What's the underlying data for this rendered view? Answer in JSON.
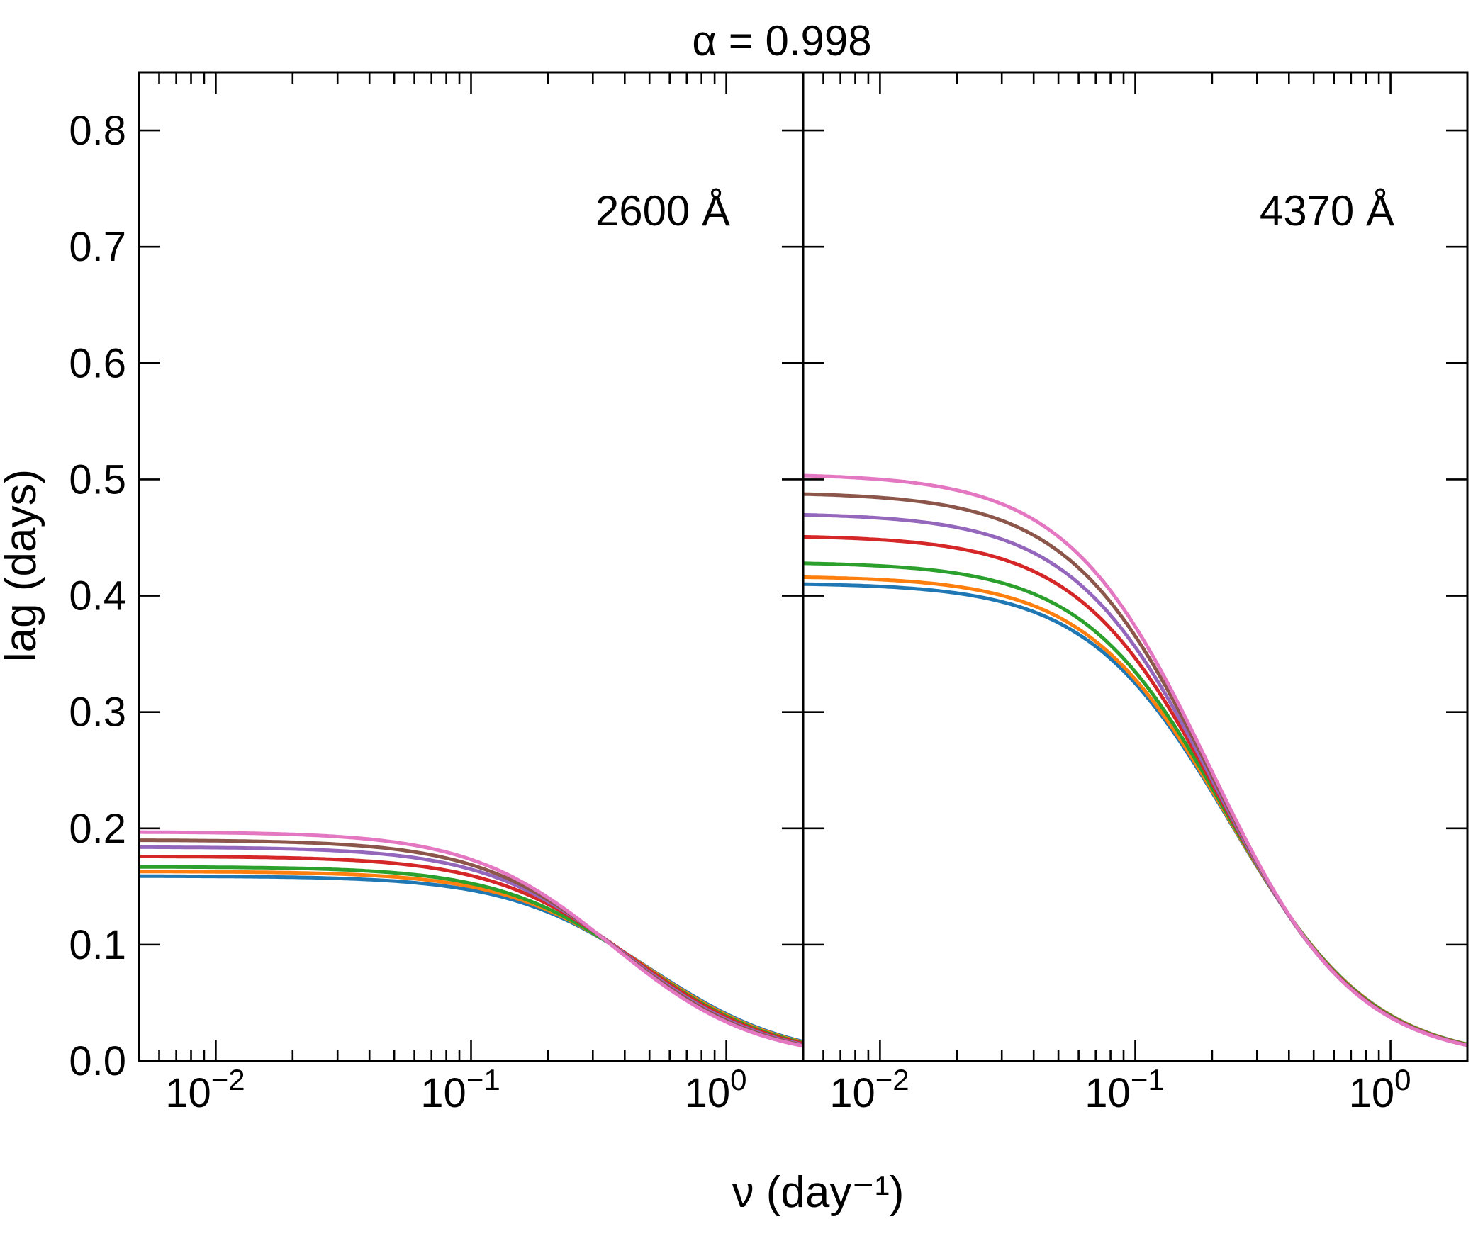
{
  "title": "α = 0.998",
  "chart_data": [
    {
      "type": "line",
      "panel_label": "2600 Å",
      "xscale": "log",
      "xlim": [
        0.005,
        2.0
      ],
      "ylim": [
        0.0,
        0.85
      ],
      "xlabel": "ν (day⁻¹)",
      "ylabel": "lag (days)",
      "x_ticks": [
        {
          "value": 0.01,
          "base": "10",
          "exp": "−2"
        },
        {
          "value": 0.1,
          "base": "10",
          "exp": "−1"
        },
        {
          "value": 1,
          "base": "10",
          "exp": "0"
        }
      ],
      "y_ticks": [
        {
          "value": 0.0,
          "label": "0.0"
        },
        {
          "value": 0.1,
          "label": "0.1"
        },
        {
          "value": 0.2,
          "label": "0.2"
        },
        {
          "value": 0.3,
          "label": "0.3"
        },
        {
          "value": 0.4,
          "label": "0.4"
        },
        {
          "value": 0.5,
          "label": "0.5"
        },
        {
          "value": 0.6,
          "label": "0.6"
        },
        {
          "value": 0.7,
          "label": "0.7"
        },
        {
          "value": 0.8,
          "label": "0.8"
        }
      ],
      "series": [
        {
          "color": "#1f77b4",
          "lag0": 0.159,
          "nu_c": 0.5
        },
        {
          "color": "#ff7f0e",
          "lag0": 0.163,
          "nu_c": 0.48
        },
        {
          "color": "#2ca02c",
          "lag0": 0.167,
          "nu_c": 0.46
        },
        {
          "color": "#d62728",
          "lag0": 0.176,
          "nu_c": 0.43
        },
        {
          "color": "#9467bd",
          "lag0": 0.184,
          "nu_c": 0.4
        },
        {
          "color": "#8c564b",
          "lag0": 0.19,
          "nu_c": 0.38
        },
        {
          "color": "#e377c2",
          "lag0": 0.197,
          "nu_c": 0.36
        }
      ]
    },
    {
      "type": "line",
      "panel_label": "4370 Å",
      "xscale": "log",
      "xlim": [
        0.005,
        2.0
      ],
      "ylim": [
        0.0,
        0.85
      ],
      "xlabel": "ν (day⁻¹)",
      "ylabel": "lag (days)",
      "x_ticks": [
        {
          "value": 0.01,
          "base": "10",
          "exp": "−2"
        },
        {
          "value": 0.1,
          "base": "10",
          "exp": "−1"
        },
        {
          "value": 1,
          "base": "10",
          "exp": "0"
        }
      ],
      "y_ticks": [
        {
          "value": 0.0,
          "label": "0.0"
        },
        {
          "value": 0.1,
          "label": "0.1"
        },
        {
          "value": 0.2,
          "label": "0.2"
        },
        {
          "value": 0.3,
          "label": "0.3"
        },
        {
          "value": 0.4,
          "label": "0.4"
        },
        {
          "value": 0.5,
          "label": "0.5"
        },
        {
          "value": 0.6,
          "label": "0.6"
        },
        {
          "value": 0.7,
          "label": "0.7"
        },
        {
          "value": 0.8,
          "label": "0.8"
        }
      ],
      "series": [
        {
          "color": "#1f77b4",
          "lag0": 0.411,
          "nu_c": 0.235
        },
        {
          "color": "#ff7f0e",
          "lag0": 0.417,
          "nu_c": 0.232
        },
        {
          "color": "#2ca02c",
          "lag0": 0.429,
          "nu_c": 0.226
        },
        {
          "color": "#d62728",
          "lag0": 0.452,
          "nu_c": 0.215
        },
        {
          "color": "#9467bd",
          "lag0": 0.471,
          "nu_c": 0.207
        },
        {
          "color": "#8c564b",
          "lag0": 0.489,
          "nu_c": 0.201
        },
        {
          "color": "#e377c2",
          "lag0": 0.505,
          "nu_c": 0.196
        }
      ]
    }
  ]
}
